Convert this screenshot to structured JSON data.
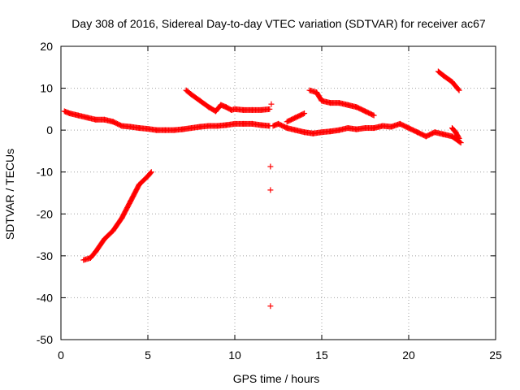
{
  "chart_data": {
    "type": "scatter",
    "title": "Day 308 of 2016, Sidereal Day-to-day VTEC variation (SDTVAR) for receiver ac67",
    "xlabel": "GPS time / hours",
    "ylabel": "SDTVAR / TECUs",
    "xlim": [
      0,
      25
    ],
    "ylim": [
      -50,
      20
    ],
    "xticks": [
      0,
      5,
      10,
      15,
      20,
      25
    ],
    "yticks": [
      -50,
      -40,
      -30,
      -20,
      -10,
      0,
      10,
      20
    ],
    "xtick_labels": [
      "0",
      "5",
      "10",
      "15",
      "20",
      "25"
    ],
    "ytick_labels": [
      "-50",
      "-40",
      "-30",
      "-20",
      "-10",
      "0",
      "10",
      "20"
    ],
    "grid": true,
    "marker": "+",
    "color": "#ff0000",
    "series": [
      {
        "name": "track-1",
        "x": [
          0.2,
          0.5,
          1.0,
          1.5,
          2.0,
          2.5,
          3.0,
          3.5,
          4.0,
          4.5,
          5.0,
          5.5,
          6.0,
          6.5,
          7.0,
          7.5,
          8.0,
          8.5,
          9.0,
          9.5,
          10.0,
          10.5,
          11.0,
          11.5,
          12.0
        ],
        "y": [
          4.5,
          4.0,
          3.5,
          3.0,
          2.5,
          2.5,
          2.0,
          1.0,
          0.8,
          0.5,
          0.3,
          0.0,
          0.0,
          0.0,
          0.2,
          0.5,
          0.8,
          1.0,
          1.0,
          1.2,
          1.5,
          1.5,
          1.5,
          1.2,
          1.0
        ]
      },
      {
        "name": "track-2",
        "x": [
          1.3,
          1.7,
          2.0,
          2.5,
          3.0,
          3.5,
          4.0,
          4.5,
          5.0,
          5.2
        ],
        "y": [
          -31,
          -30.5,
          -29,
          -26,
          -24,
          -21,
          -17,
          -13,
          -11,
          -10
        ]
      },
      {
        "name": "track-3",
        "x": [
          7.2,
          7.5,
          8.0,
          8.5,
          8.9,
          9.2,
          9.5,
          9.8,
          10.0,
          10.5,
          11.0,
          11.5,
          12.0
        ],
        "y": [
          9.5,
          8.5,
          7.0,
          5.5,
          4.5,
          6.0,
          5.5,
          4.8,
          5.0,
          4.8,
          4.8,
          4.8,
          5.0
        ]
      },
      {
        "name": "track-4",
        "x": [
          12.2,
          12.5,
          13.0,
          13.5,
          14.0,
          14.5,
          15.0,
          15.5,
          16.0,
          16.5,
          17.0,
          17.5,
          18.0,
          18.5,
          19.0,
          19.5,
          20.0,
          20.5,
          21.0,
          21.5,
          22.0,
          22.5,
          23.0
        ],
        "y": [
          1.0,
          1.5,
          0.5,
          0.0,
          -0.5,
          -0.8,
          -0.5,
          -0.3,
          0.0,
          0.5,
          0.2,
          0.5,
          0.5,
          1.0,
          0.8,
          1.5,
          0.5,
          -0.5,
          -1.5,
          -0.5,
          -1.0,
          -1.5,
          -3.0
        ]
      },
      {
        "name": "track-5",
        "x": [
          13.0,
          13.5,
          14.0
        ],
        "y": [
          2.0,
          3.0,
          4.0
        ]
      },
      {
        "name": "track-6",
        "x": [
          14.3,
          14.7,
          15.0,
          15.5,
          16.0,
          16.5,
          17.0,
          17.5,
          18.0
        ],
        "y": [
          9.5,
          9.0,
          7.0,
          6.5,
          6.5,
          6.0,
          5.5,
          4.5,
          3.5
        ]
      },
      {
        "name": "track-7",
        "x": [
          21.7,
          22.0,
          22.5,
          22.9
        ],
        "y": [
          14.0,
          13.0,
          11.5,
          9.5
        ]
      },
      {
        "name": "track-8",
        "x": [
          22.5,
          22.7,
          22.9
        ],
        "y": [
          0.5,
          -0.5,
          -2.0
        ]
      },
      {
        "name": "isolated",
        "x": [
          12.1,
          12.05,
          12.05,
          12.05
        ],
        "y": [
          6.2,
          -8.7,
          -14.3,
          -42.0
        ]
      }
    ]
  }
}
